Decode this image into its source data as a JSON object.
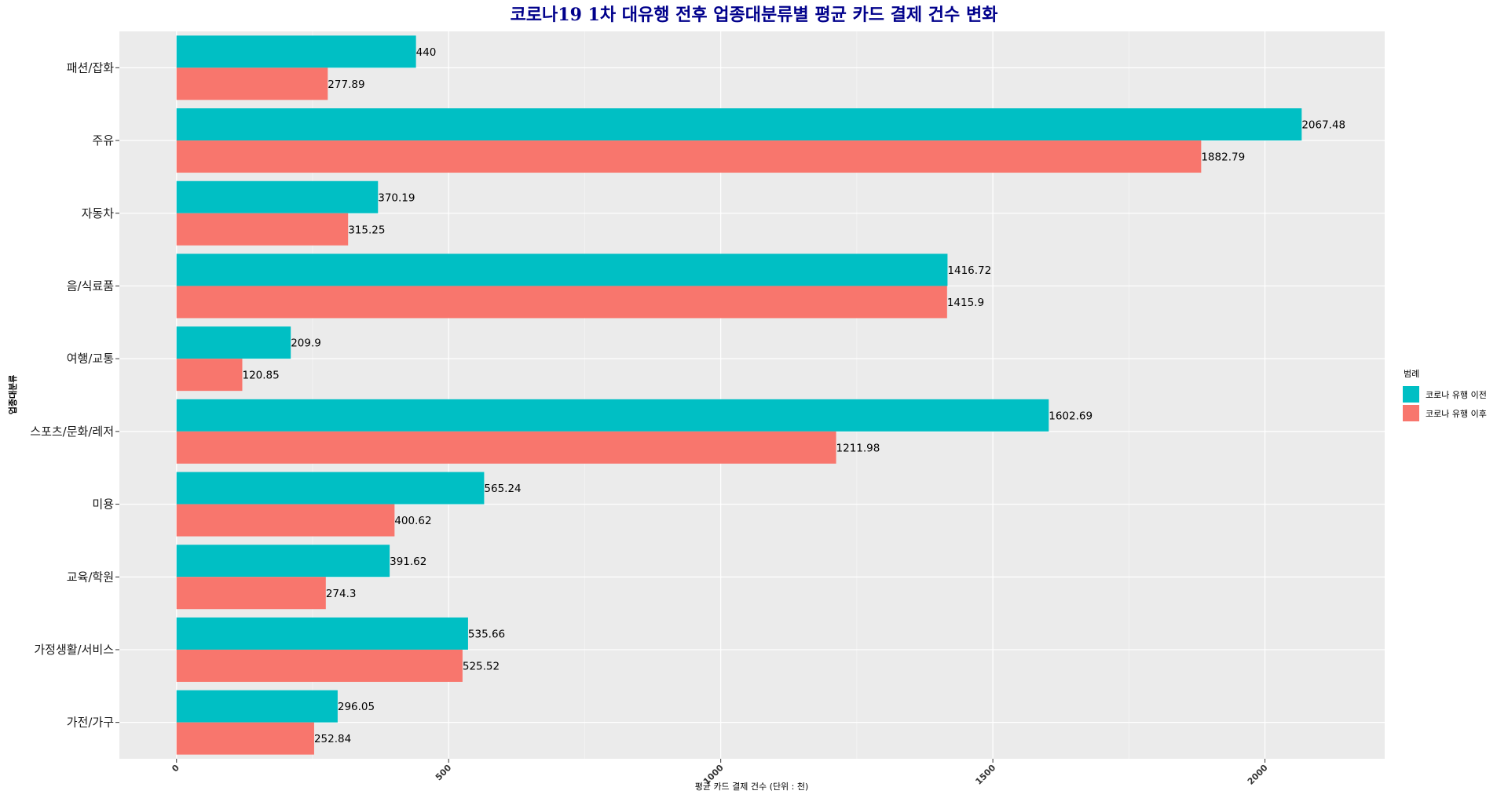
{
  "chart_data": {
    "type": "bar",
    "orientation": "horizontal",
    "title": "코로나19 1차 대유행 전후 업종대분류별 평균 카드 결제 건수 변화",
    "xlabel": "평균 카드 결제 건수 (단위 : 천)",
    "ylabel": "업종대분류",
    "xlim": [
      -105,
      2220
    ],
    "xticks": [
      0,
      500,
      1000,
      1500,
      2000
    ],
    "grid": true,
    "legend_position": "right",
    "legend_title": "범례",
    "categories": [
      "패션/잡화",
      "주유",
      "자동차",
      "음/식료품",
      "여행/교통",
      "스포츠/문화/레저",
      "미용",
      "교육/학원",
      "가정생활/서비스",
      "가전/가구"
    ],
    "series": [
      {
        "name": "코로나 유행 이전",
        "color": "#00BFC4",
        "values": [
          440,
          2067.48,
          370.19,
          1416.72,
          209.9,
          1602.69,
          565.24,
          391.62,
          535.66,
          296.05
        ]
      },
      {
        "name": "코로나 유행 이후",
        "color": "#F8766D",
        "values": [
          277.89,
          1882.79,
          315.25,
          1415.9,
          120.85,
          1211.98,
          400.62,
          274.3,
          525.52,
          252.84
        ]
      }
    ]
  },
  "colors": {
    "title": "#00008B",
    "panel_bg": "#EBEBEB",
    "grid": "#FFFFFF"
  }
}
